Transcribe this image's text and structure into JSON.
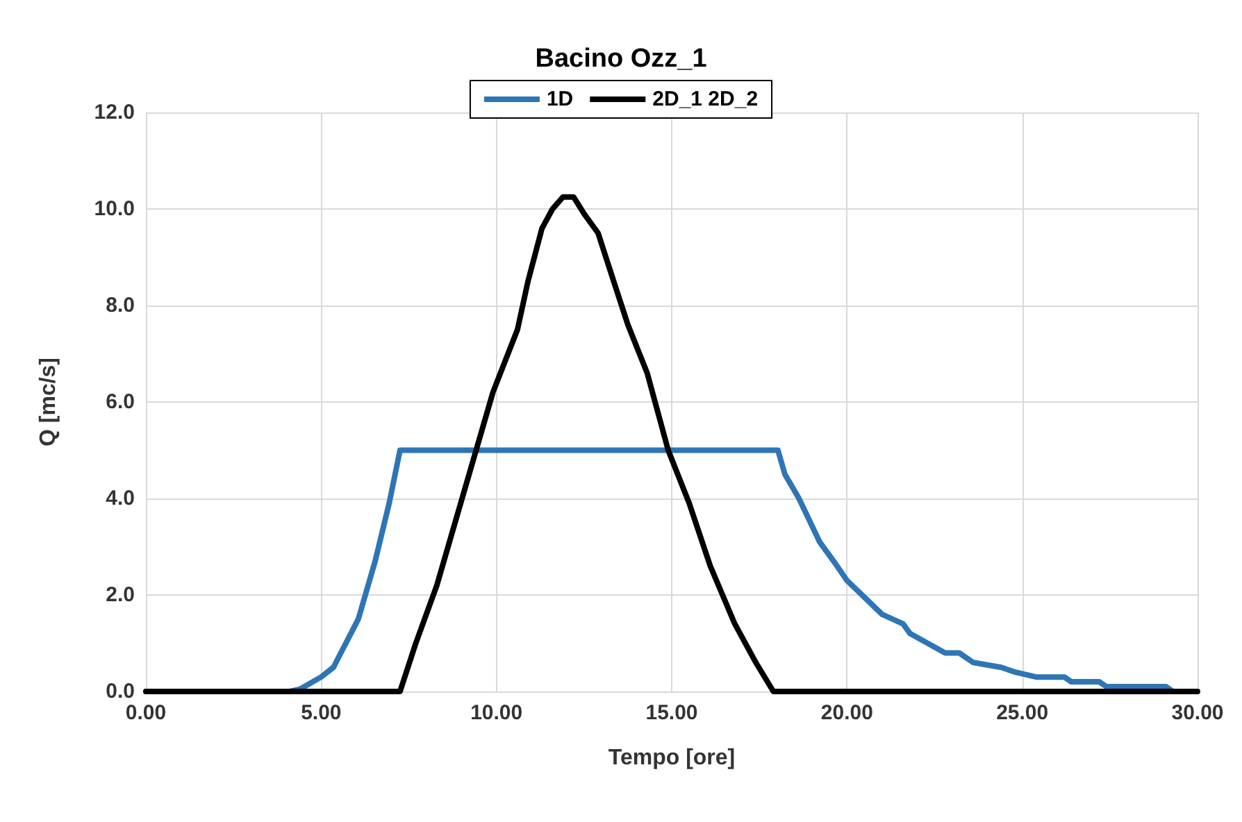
{
  "chart_data": {
    "type": "line",
    "title": "Bacino Ozz_1",
    "xlabel": "Tempo [ore]",
    "ylabel": "Q [mc/s]",
    "xlim": [
      0,
      30
    ],
    "ylim": [
      0,
      12
    ],
    "xticks": [
      {
        "value": 0,
        "label": "0.00"
      },
      {
        "value": 5,
        "label": "5.00"
      },
      {
        "value": 10,
        "label": "10.00"
      },
      {
        "value": 15,
        "label": "15.00"
      },
      {
        "value": 20,
        "label": "20.00"
      },
      {
        "value": 25,
        "label": "25.00"
      },
      {
        "value": 30,
        "label": "30.00"
      }
    ],
    "yticks": [
      {
        "value": 0,
        "label": "0.0"
      },
      {
        "value": 2,
        "label": "2.0"
      },
      {
        "value": 4,
        "label": "4.0"
      },
      {
        "value": 6,
        "label": "6.0"
      },
      {
        "value": 8,
        "label": "8.0"
      },
      {
        "value": 10,
        "label": "10.0"
      },
      {
        "value": 12,
        "label": "12.0"
      }
    ],
    "grid": true,
    "legend": "top",
    "marker": "none",
    "line_style": "solid",
    "series": [
      {
        "name": "1D",
        "color": "#2e75b6",
        "x": [
          0,
          4.1,
          4.4,
          5.0,
          5.35,
          6.06,
          6.54,
          6.94,
          7.25,
          18.03,
          18.23,
          18.63,
          19.22,
          19.62,
          20.0,
          21.0,
          21.6,
          21.8,
          22.8,
          23.2,
          23.6,
          24.4,
          24.8,
          25.4,
          26.2,
          26.4,
          27.2,
          27.4,
          29.1,
          29.3
        ],
        "values": [
          0,
          0,
          0.05,
          0.3,
          0.5,
          1.5,
          2.7,
          3.9,
          5.0,
          5.0,
          4.5,
          4.0,
          3.1,
          2.7,
          2.3,
          1.6,
          1.4,
          1.2,
          0.8,
          0.8,
          0.6,
          0.5,
          0.4,
          0.3,
          0.3,
          0.2,
          0.2,
          0.1,
          0.1,
          0
        ]
      },
      {
        "name": "2D_1 2D_2",
        "color": "#000000",
        "x": [
          0,
          7.25,
          7.7,
          8.3,
          8.7,
          9.3,
          9.9,
          10.6,
          10.9,
          11.3,
          11.6,
          11.9,
          12.2,
          12.5,
          12.9,
          13.3,
          13.75,
          14.3,
          14.9,
          15.5,
          16.1,
          16.8,
          17.4,
          17.9,
          30
        ],
        "values": [
          0,
          0,
          1.0,
          2.2,
          3.2,
          4.7,
          6.2,
          7.5,
          8.5,
          9.6,
          10.0,
          10.25,
          10.25,
          9.9,
          9.5,
          8.6,
          7.6,
          6.6,
          5.0,
          3.9,
          2.6,
          1.4,
          0.6,
          0,
          0
        ]
      }
    ]
  }
}
